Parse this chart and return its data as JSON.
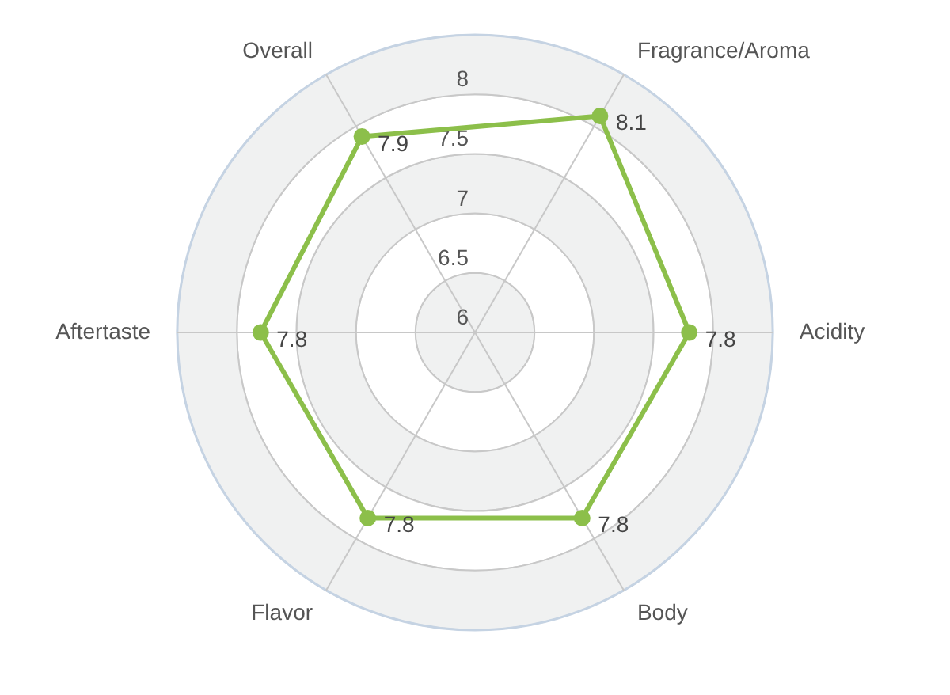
{
  "chart_data": {
    "type": "radar",
    "categories": [
      "Fragrance/Aroma",
      "Acidity",
      "Body",
      "Flavor",
      "Aftertaste",
      "Overall"
    ],
    "series": [
      {
        "color": "#8cbf4a",
        "values": [
          8.1,
          7.8,
          7.8,
          7.8,
          7.8,
          7.9
        ]
      }
    ],
    "ylim": [
      6,
      8.5
    ],
    "yticks": [
      6,
      6.5,
      7,
      7.5,
      8
    ],
    "grid": true,
    "marker": "circle",
    "line_style": "solid",
    "data_labels": true
  }
}
